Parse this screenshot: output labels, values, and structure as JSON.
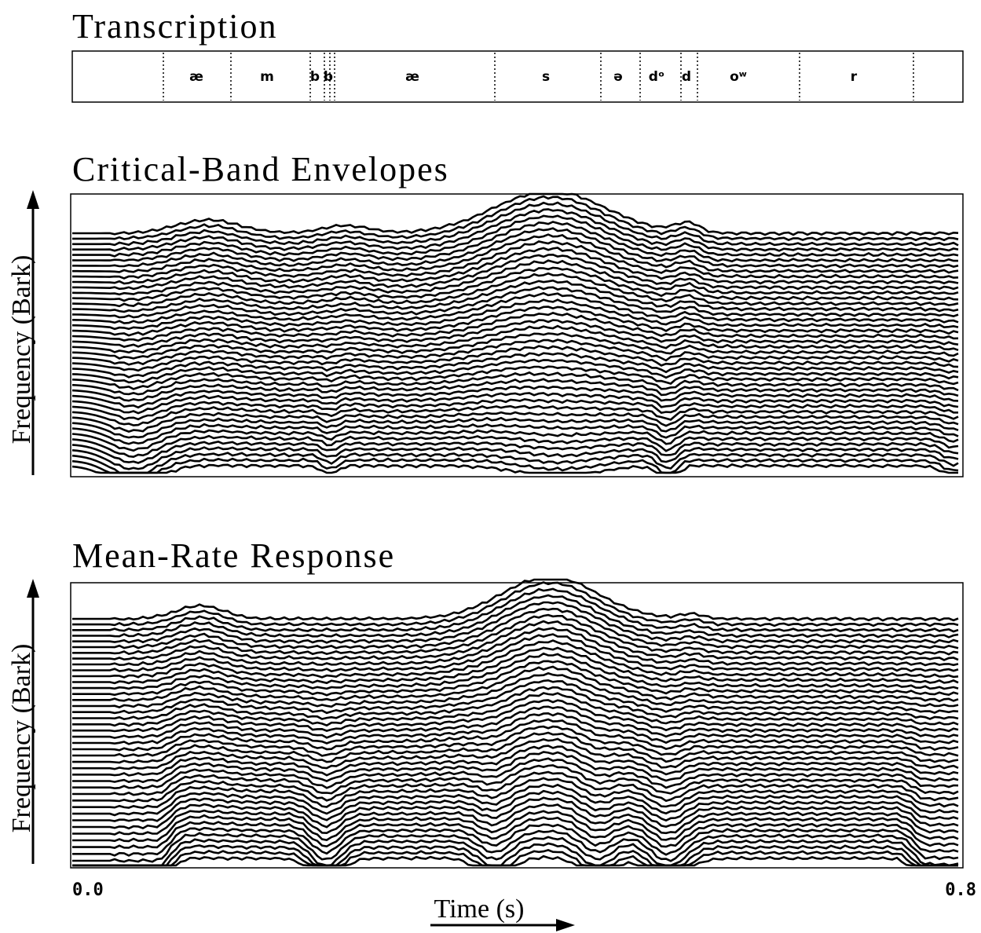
{
  "transcription": {
    "title": "Transcription",
    "segments": [
      "æ",
      "m",
      "b",
      "b",
      "æ",
      "s",
      "ə",
      "dᵒ",
      "d",
      "oʷ",
      "r"
    ]
  },
  "panels": [
    {
      "title": "Critical-Band Envelopes",
      "y_axis_label": "Frequency (Bark)"
    },
    {
      "title": "Mean-Rate Response",
      "y_axis_label": "Frequency (Bark)"
    }
  ],
  "x_axis": {
    "label": "Time (s)",
    "start": "0.0",
    "end": "0.8"
  }
}
